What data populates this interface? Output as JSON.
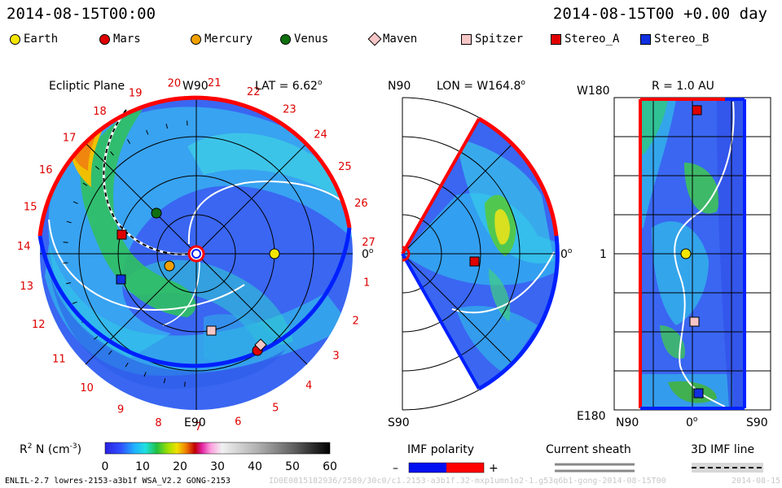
{
  "header": {
    "datetime_left": "2014-08-15T00:00",
    "datetime_right": "2014-08-15T00 +0.00 day"
  },
  "legend": [
    {
      "label": "Earth",
      "shape": "circle",
      "color": "#f4e600"
    },
    {
      "label": "Mars",
      "shape": "circle",
      "color": "#e00000"
    },
    {
      "label": "Mercury",
      "shape": "circle",
      "color": "#f0a000"
    },
    {
      "label": "Venus",
      "shape": "circle",
      "color": "#107010"
    },
    {
      "label": "Maven",
      "shape": "diamond",
      "color": "#f6c6c6"
    },
    {
      "label": "Spitzer",
      "shape": "square",
      "color": "#f6c6c6"
    },
    {
      "label": "Stereo_A",
      "shape": "square",
      "color": "#e00000"
    },
    {
      "label": "Stereo_B",
      "shape": "square",
      "color": "#1030e0"
    }
  ],
  "ecliptic": {
    "title": "Ecliptic Plane",
    "top_label": "W90",
    "bottom_label": "E90",
    "right_label": "0",
    "right_label_sup": "o",
    "lat_label": "LAT = 6.62",
    "lat_sup": "o",
    "carrington_numbers": [
      "20",
      "21",
      "22",
      "23",
      "24",
      "25",
      "26",
      "27",
      "1",
      "2",
      "3",
      "4",
      "5",
      "6",
      "7",
      "8",
      "9",
      "10",
      "11",
      "12",
      "13",
      "14",
      "15",
      "16",
      "17",
      "18",
      "19"
    ]
  },
  "meridional": {
    "top_left": "N90",
    "lon_label": "LON = W164.8",
    "lon_sup": "o",
    "bottom_left": "S90",
    "right_label": "0",
    "right_sup": "o"
  },
  "radial": {
    "title": "R = 1.0 AU",
    "left_top": "W180",
    "left_mid": "1",
    "left_bottom": "E180",
    "bottom_left": "N90",
    "bottom_mid": "0",
    "bottom_mid_sup": "o",
    "bottom_right": "S90"
  },
  "colorbar": {
    "label_main": "R",
    "label_sup": "2",
    "label_rest": " N (cm",
    "label_exp": "-3",
    "label_end": ")",
    "ticks": [
      "0",
      "10",
      "20",
      "30",
      "40",
      "50",
      "60"
    ],
    "range": [
      0,
      60
    ]
  },
  "imf_polarity": {
    "title": "IMF polarity",
    "minus": "–",
    "plus": "+",
    "neg_color": "#0010f0",
    "pos_color": "#ff0000"
  },
  "current_sheath": {
    "title": "Current sheath"
  },
  "imf_line": {
    "title": "3D IMF line"
  },
  "footer": {
    "model": "ENLIL-2.7 lowres-2153-a3b1f WSA_V2.2 GONG-2153",
    "run_id": "ID0E0815182936/2589/30c0/c1.2153-a3b1f.32-mxp1umn1o2-1.g53q6b1-gong-2014-08-15T00",
    "date_short": "2014-08-15"
  }
}
